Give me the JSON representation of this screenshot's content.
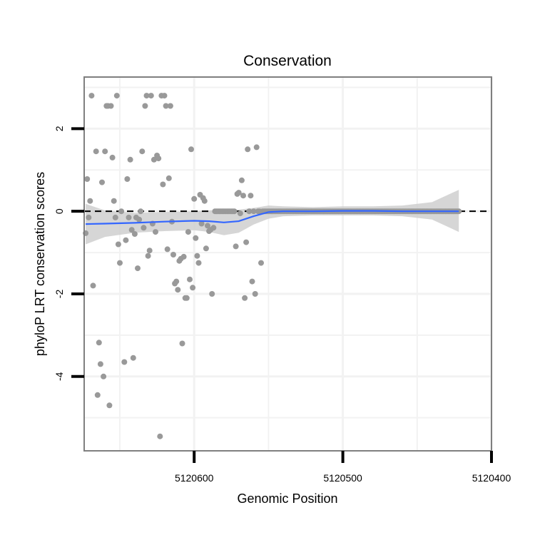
{
  "chart_data": {
    "type": "scatter",
    "title": "Conservation",
    "xlabel": "Genomic Position",
    "ylabel": "phyloP LRT conservation scores",
    "x_reversed": true,
    "xlim": [
      5120400,
      5120674
    ],
    "ylim": [
      -5.8,
      3.25
    ],
    "x_ticks": [
      5120600,
      5120500,
      5120400
    ],
    "x_tick_labels": [
      "5120600",
      "5120500",
      "5120400"
    ],
    "y_ticks": [
      2,
      0,
      -2,
      -4
    ],
    "y_tick_labels": [
      "2",
      "0",
      "-2",
      "-4"
    ],
    "grid_major_x": [
      5120600,
      5120500,
      5120400
    ],
    "grid_minor_x": [
      5120650,
      5120550,
      5120450
    ],
    "grid_major_y": [
      2,
      0,
      -2,
      -4
    ],
    "grid_minor_y": [
      3,
      1,
      -1,
      -3,
      -5
    ],
    "reference_line": {
      "y": 0,
      "style": "dashed"
    },
    "colors": {
      "points": "#999999",
      "smooth": "#3366ff",
      "ribbon": "#cccccc",
      "panel_border": "#7f7f7f",
      "grid": "#f2f2f2"
    },
    "points": [
      [
        5120673,
        -0.53
      ],
      [
        5120672,
        0.78
      ],
      [
        5120671,
        -0.15
      ],
      [
        5120670,
        0.25
      ],
      [
        5120669,
        2.8
      ],
      [
        5120668,
        -1.8
      ],
      [
        5120666,
        1.45
      ],
      [
        5120665,
        -4.45
      ],
      [
        5120664,
        -3.18
      ],
      [
        5120663,
        -3.7
      ],
      [
        5120662,
        0.7
      ],
      [
        5120661,
        -4.0
      ],
      [
        5120660,
        1.45
      ],
      [
        5120659,
        2.55
      ],
      [
        5120658,
        2.55
      ],
      [
        5120657,
        -4.7
      ],
      [
        5120656,
        2.55
      ],
      [
        5120655,
        1.3
      ],
      [
        5120654,
        0.25
      ],
      [
        5120653,
        -0.15
      ],
      [
        5120652,
        2.8
      ],
      [
        5120651,
        -0.8
      ],
      [
        5120650,
        -1.25
      ],
      [
        5120649,
        0.0
      ],
      [
        5120647,
        -3.65
      ],
      [
        5120646,
        -0.7
      ],
      [
        5120645,
        0.78
      ],
      [
        5120644,
        -0.15
      ],
      [
        5120643,
        1.25
      ],
      [
        5120642,
        -0.45
      ],
      [
        5120641,
        -3.55
      ],
      [
        5120640,
        -0.55
      ],
      [
        5120639,
        -0.15
      ],
      [
        5120638,
        -1.38
      ],
      [
        5120637,
        -0.2
      ],
      [
        5120636,
        0.0
      ],
      [
        5120635,
        1.45
      ],
      [
        5120634,
        -0.4
      ],
      [
        5120633,
        2.55
      ],
      [
        5120632,
        2.8
      ],
      [
        5120631,
        -1.08
      ],
      [
        5120630,
        -0.95
      ],
      [
        5120629,
        2.8
      ],
      [
        5120628,
        -0.3
      ],
      [
        5120627,
        1.25
      ],
      [
        5120626,
        -0.5
      ],
      [
        5120625,
        1.35
      ],
      [
        5120624,
        1.28
      ],
      [
        5120623,
        -5.45
      ],
      [
        5120622,
        2.8
      ],
      [
        5120621,
        0.65
      ],
      [
        5120620,
        2.8
      ],
      [
        5120619,
        2.55
      ],
      [
        5120618,
        -0.92
      ],
      [
        5120617,
        0.8
      ],
      [
        5120616,
        2.55
      ],
      [
        5120615,
        -0.25
      ],
      [
        5120614,
        -1.05
      ],
      [
        5120613,
        -1.75
      ],
      [
        5120612,
        -1.7
      ],
      [
        5120611,
        -1.9
      ],
      [
        5120610,
        -1.2
      ],
      [
        5120609,
        -1.15
      ],
      [
        5120608,
        -3.2
      ],
      [
        5120607,
        -1.1
      ],
      [
        5120606,
        -2.1
      ],
      [
        5120605,
        -2.1
      ],
      [
        5120604,
        -0.5
      ],
      [
        5120603,
        -1.65
      ],
      [
        5120602,
        1.5
      ],
      [
        5120601,
        -1.85
      ],
      [
        5120600,
        0.3
      ],
      [
        5120599,
        -0.65
      ],
      [
        5120598,
        -1.08
      ],
      [
        5120597,
        -1.25
      ],
      [
        5120596,
        0.4
      ],
      [
        5120595,
        -0.3
      ],
      [
        5120594,
        0.32
      ],
      [
        5120593,
        0.25
      ],
      [
        5120592,
        -0.9
      ],
      [
        5120591,
        -0.35
      ],
      [
        5120590,
        -0.48
      ],
      [
        5120589,
        -0.45
      ],
      [
        5120588,
        -2.0
      ],
      [
        5120587,
        -0.4
      ],
      [
        5120586,
        0.0
      ],
      [
        5120585,
        0.0
      ],
      [
        5120584,
        0.0
      ],
      [
        5120583,
        0.0
      ],
      [
        5120582,
        0.0
      ],
      [
        5120581,
        0.0
      ],
      [
        5120580,
        0.0
      ],
      [
        5120579,
        0.0
      ],
      [
        5120578,
        0.0
      ],
      [
        5120577,
        0.0
      ],
      [
        5120576,
        0.0
      ],
      [
        5120575,
        0.0
      ],
      [
        5120574,
        0.0
      ],
      [
        5120573,
        0.0
      ],
      [
        5120572,
        -0.85
      ],
      [
        5120571,
        0.42
      ],
      [
        5120570,
        0.45
      ],
      [
        5120569,
        -0.05
      ],
      [
        5120568,
        0.75
      ],
      [
        5120567,
        0.38
      ],
      [
        5120566,
        -2.1
      ],
      [
        5120565,
        -0.75
      ],
      [
        5120564,
        1.5
      ],
      [
        5120563,
        0.0
      ],
      [
        5120562,
        0.38
      ],
      [
        5120561,
        -1.7
      ],
      [
        5120560,
        0.0
      ],
      [
        5120559,
        -2.0
      ],
      [
        5120558,
        1.55
      ],
      [
        5120557,
        0.0
      ],
      [
        5120556,
        0.0
      ],
      [
        5120555,
        -1.25
      ],
      [
        5120554,
        0.0
      ],
      [
        5120553,
        0.0
      ],
      [
        5120552,
        0.0
      ],
      [
        5120551,
        0.0
      ],
      [
        5120550,
        0.0
      ],
      [
        5120549,
        0.0
      ],
      [
        5120548,
        0.0
      ],
      [
        5120547,
        0.0
      ],
      [
        5120546,
        0.0
      ],
      [
        5120545,
        0.0
      ],
      [
        5120544,
        0.0
      ],
      [
        5120543,
        0.0
      ],
      [
        5120542,
        0.0
      ],
      [
        5120541,
        0.0
      ],
      [
        5120540,
        0.0
      ],
      [
        5120539,
        0.0
      ],
      [
        5120538,
        0.0
      ],
      [
        5120537,
        0.0
      ],
      [
        5120536,
        0.0
      ],
      [
        5120535,
        0.0
      ],
      [
        5120534,
        0.0
      ],
      [
        5120533,
        0.0
      ],
      [
        5120532,
        0.0
      ],
      [
        5120531,
        0.0
      ],
      [
        5120530,
        0.0
      ],
      [
        5120529,
        0.0
      ],
      [
        5120528,
        0.0
      ],
      [
        5120527,
        0.0
      ],
      [
        5120526,
        0.0
      ],
      [
        5120525,
        0.0
      ],
      [
        5120524,
        0.0
      ],
      [
        5120523,
        0.0
      ],
      [
        5120522,
        0.0
      ],
      [
        5120521,
        0.0
      ],
      [
        5120520,
        0.0
      ],
      [
        5120519,
        0.0
      ],
      [
        5120518,
        0.0
      ],
      [
        5120517,
        0.0
      ],
      [
        5120516,
        0.0
      ],
      [
        5120515,
        0.0
      ],
      [
        5120514,
        0.0
      ],
      [
        5120513,
        0.0
      ],
      [
        5120512,
        0.0
      ],
      [
        5120511,
        0.0
      ],
      [
        5120510,
        0.0
      ],
      [
        5120509,
        0.0
      ],
      [
        5120508,
        0.0
      ],
      [
        5120507,
        0.0
      ],
      [
        5120506,
        0.0
      ],
      [
        5120505,
        0.0
      ],
      [
        5120504,
        0.0
      ],
      [
        5120503,
        0.0
      ],
      [
        5120502,
        0.0
      ],
      [
        5120501,
        0.0
      ],
      [
        5120500,
        0.0
      ],
      [
        5120499,
        0.0
      ],
      [
        5120498,
        0.0
      ],
      [
        5120497,
        0.0
      ],
      [
        5120496,
        0.0
      ],
      [
        5120495,
        0.0
      ],
      [
        5120494,
        0.0
      ],
      [
        5120493,
        0.0
      ],
      [
        5120492,
        0.0
      ],
      [
        5120491,
        0.0
      ],
      [
        5120490,
        0.0
      ],
      [
        5120489,
        0.0
      ],
      [
        5120488,
        0.0
      ],
      [
        5120487,
        0.0
      ],
      [
        5120486,
        0.0
      ],
      [
        5120485,
        0.0
      ],
      [
        5120484,
        0.0
      ],
      [
        5120483,
        0.0
      ],
      [
        5120482,
        0.0
      ],
      [
        5120481,
        0.0
      ],
      [
        5120480,
        0.0
      ],
      [
        5120479,
        0.0
      ],
      [
        5120478,
        0.0
      ],
      [
        5120477,
        0.0
      ],
      [
        5120476,
        0.0
      ],
      [
        5120475,
        0.0
      ],
      [
        5120474,
        0.0
      ],
      [
        5120473,
        0.0
      ],
      [
        5120472,
        0.0
      ],
      [
        5120471,
        0.0
      ],
      [
        5120470,
        0.0
      ],
      [
        5120469,
        0.0
      ],
      [
        5120468,
        0.0
      ],
      [
        5120467,
        0.0
      ],
      [
        5120466,
        0.0
      ],
      [
        5120465,
        0.0
      ],
      [
        5120464,
        0.0
      ],
      [
        5120463,
        0.0
      ],
      [
        5120462,
        0.0
      ],
      [
        5120461,
        0.0
      ],
      [
        5120460,
        0.0
      ],
      [
        5120459,
        0.0
      ],
      [
        5120458,
        0.0
      ],
      [
        5120457,
        0.0
      ],
      [
        5120456,
        0.0
      ],
      [
        5120455,
        0.0
      ],
      [
        5120454,
        0.0
      ],
      [
        5120453,
        0.0
      ],
      [
        5120452,
        0.0
      ],
      [
        5120451,
        0.0
      ],
      [
        5120450,
        0.0
      ],
      [
        5120449,
        0.0
      ],
      [
        5120448,
        0.0
      ],
      [
        5120447,
        0.0
      ],
      [
        5120446,
        0.0
      ],
      [
        5120445,
        0.0
      ],
      [
        5120444,
        0.0
      ],
      [
        5120443,
        0.0
      ],
      [
        5120442,
        0.0
      ],
      [
        5120441,
        0.0
      ],
      [
        5120440,
        0.0
      ],
      [
        5120439,
        0.0
      ],
      [
        5120438,
        0.0
      ],
      [
        5120437,
        0.0
      ],
      [
        5120436,
        0.0
      ],
      [
        5120435,
        0.0
      ],
      [
        5120434,
        0.0
      ],
      [
        5120433,
        0.0
      ],
      [
        5120432,
        0.0
      ],
      [
        5120431,
        0.0
      ],
      [
        5120430,
        0.0
      ],
      [
        5120429,
        0.0
      ],
      [
        5120428,
        0.0
      ],
      [
        5120427,
        0.0
      ],
      [
        5120426,
        0.0
      ],
      [
        5120425,
        0.0
      ],
      [
        5120424,
        0.0
      ],
      [
        5120423,
        0.0
      ],
      [
        5120422,
        0.0
      ]
    ],
    "smooth": {
      "x": [
        5120673,
        5120660,
        5120640,
        5120620,
        5120600,
        5120590,
        5120580,
        5120570,
        5120560,
        5120550,
        5120540,
        5120520,
        5120500,
        5120480,
        5120460,
        5120440,
        5120422
      ],
      "y": [
        -0.31,
        -0.3,
        -0.28,
        -0.25,
        -0.23,
        -0.24,
        -0.27,
        -0.24,
        -0.12,
        -0.02,
        0.0,
        0.0,
        0.01,
        0.01,
        0.0,
        0.0,
        0.0
      ],
      "ymin": [
        -0.8,
        -0.62,
        -0.52,
        -0.48,
        -0.46,
        -0.5,
        -0.58,
        -0.52,
        -0.32,
        -0.18,
        -0.12,
        -0.1,
        -0.1,
        -0.1,
        -0.12,
        -0.2,
        -0.5
      ],
      "ymax": [
        0.18,
        0.02,
        -0.04,
        -0.02,
        0.0,
        0.02,
        0.04,
        0.04,
        0.08,
        0.14,
        0.12,
        0.1,
        0.12,
        0.12,
        0.14,
        0.22,
        0.52
      ]
    }
  }
}
